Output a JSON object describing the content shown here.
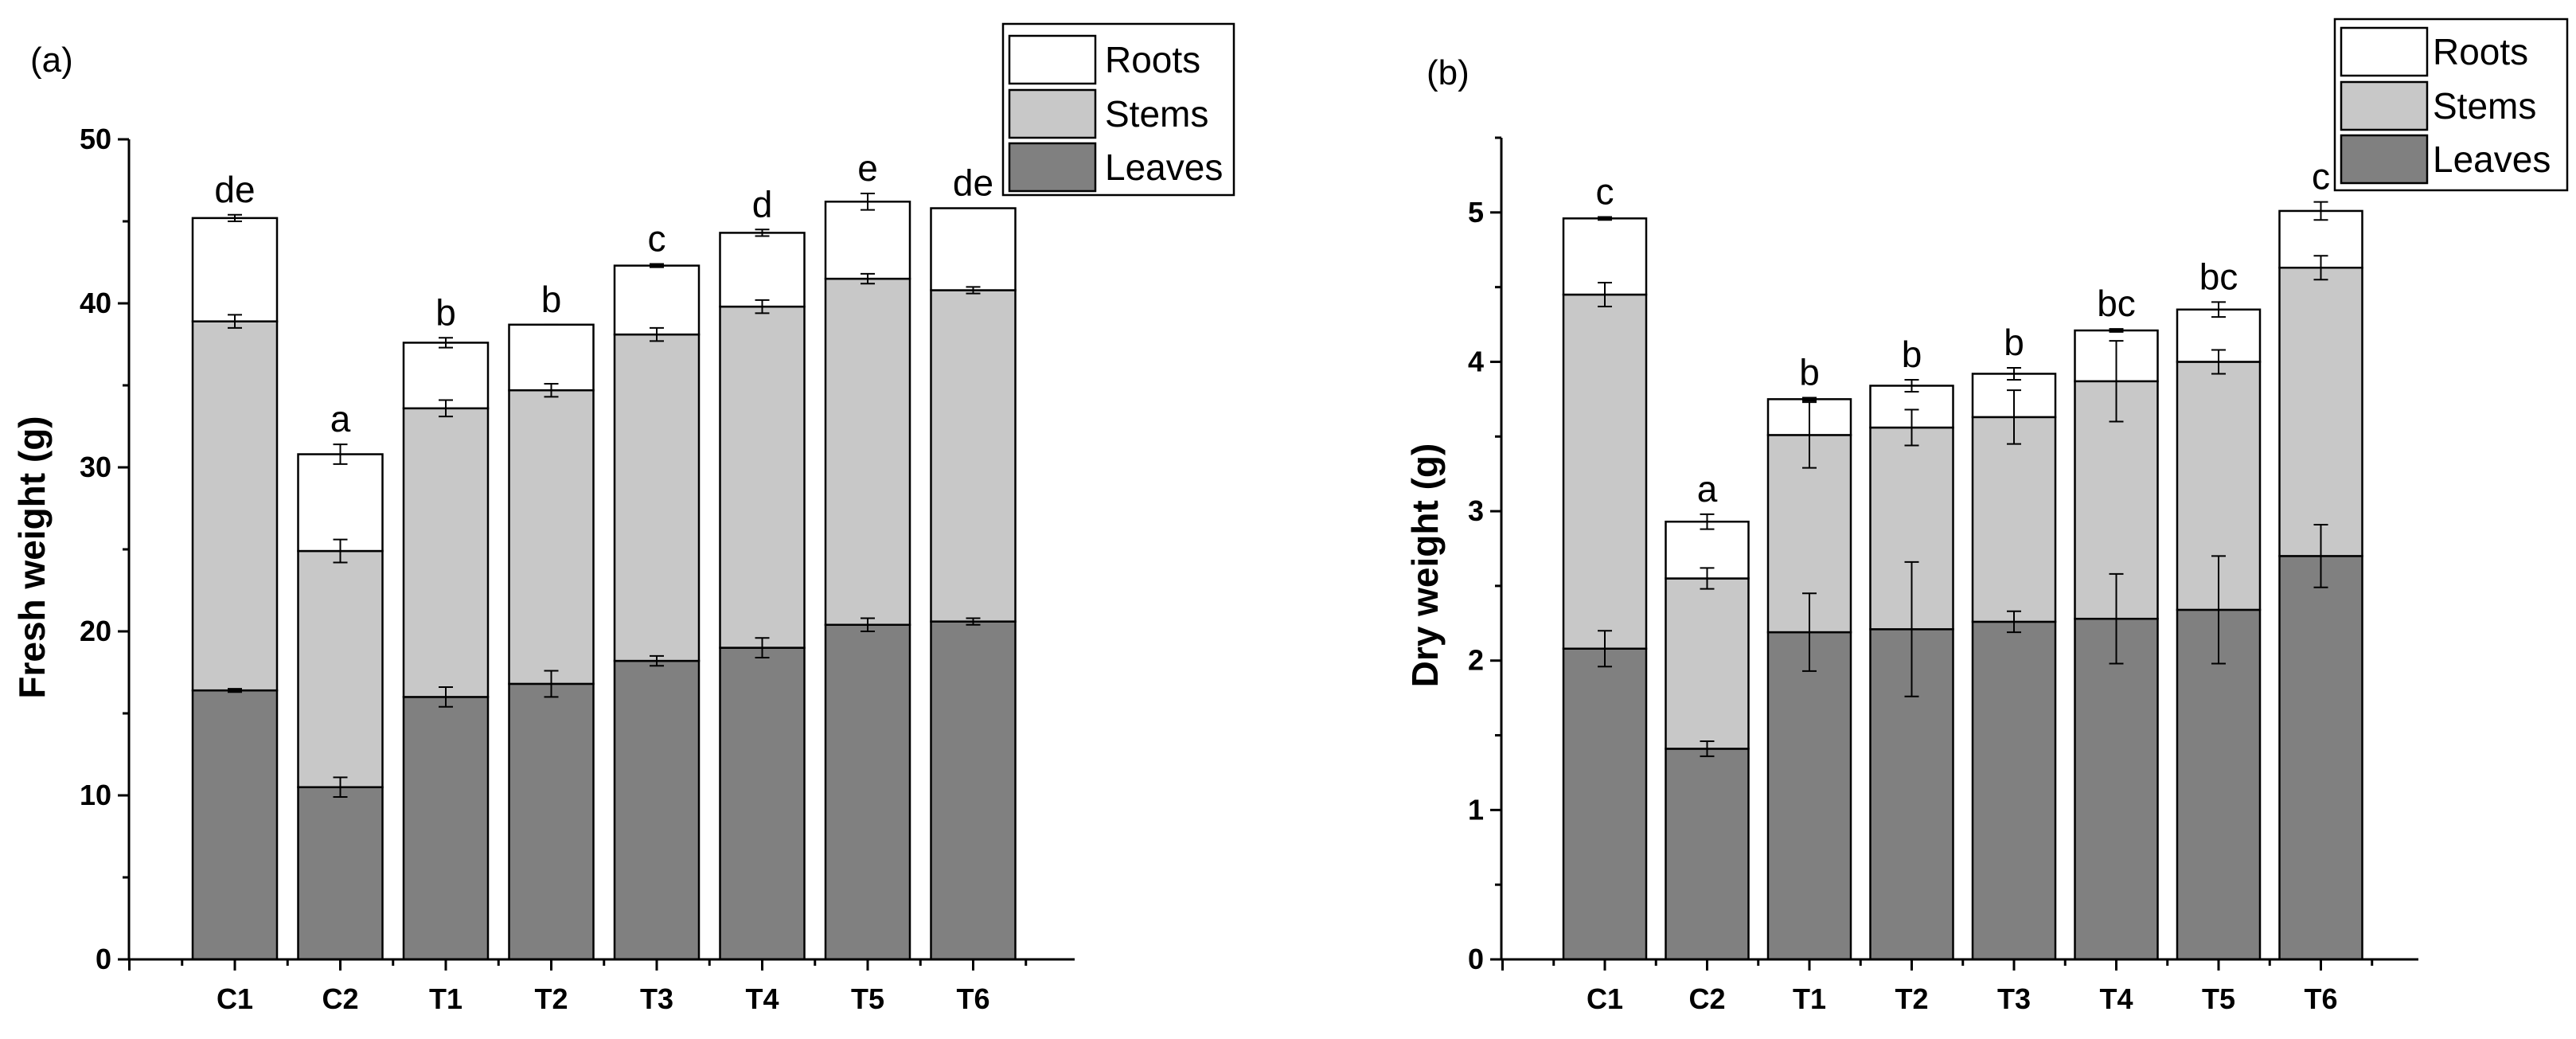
{
  "chart_data": [
    {
      "type": "bar",
      "stacked": true,
      "panel_label": "(a)",
      "title": "",
      "xlabel": "",
      "ylabel": "Fresh weight (g)",
      "ylim": [
        0,
        50
      ],
      "yticks": [
        0,
        10,
        20,
        30,
        40,
        50
      ],
      "categories": [
        "C1",
        "C2",
        "T1",
        "T2",
        "T3",
        "T4",
        "T5",
        "T6"
      ],
      "series": [
        {
          "name": "Leaves",
          "color": "#808080",
          "values": [
            16.4,
            10.5,
            16.0,
            16.8,
            18.2,
            19.0,
            20.4,
            20.6
          ],
          "errors": [
            0.1,
            0.6,
            0.6,
            0.8,
            0.3,
            0.6,
            0.4,
            0.2
          ]
        },
        {
          "name": "Stems",
          "color": "#c8c8c8",
          "values": [
            22.5,
            14.4,
            17.6,
            17.9,
            19.9,
            20.8,
            21.1,
            20.2
          ],
          "errors": [
            0.4,
            0.7,
            0.5,
            0.4,
            0.4,
            0.4,
            0.3,
            0.2
          ]
        },
        {
          "name": "Roots",
          "color": "#ffffff",
          "values": [
            6.3,
            5.9,
            4.0,
            4.0,
            4.2,
            4.5,
            4.7,
            5.0
          ],
          "errors": [
            0.2,
            0.6,
            0.3,
            0.0,
            0.1,
            0.2,
            0.5,
            0.0
          ]
        }
      ],
      "significance": [
        "de",
        "a",
        "b",
        "b",
        "c",
        "d",
        "e",
        "de"
      ],
      "legend": {
        "placement": "top-right",
        "entries": [
          "Roots",
          "Stems",
          "Leaves"
        ]
      }
    },
    {
      "type": "bar",
      "stacked": true,
      "panel_label": "(b)",
      "title": "",
      "xlabel": "",
      "ylabel": "Dry weight (g)",
      "ylim": [
        0,
        5.5
      ],
      "yticks": [
        0,
        1,
        2,
        3,
        4,
        5
      ],
      "categories": [
        "C1",
        "C2",
        "T1",
        "T2",
        "T3",
        "T4",
        "T5",
        "T6"
      ],
      "series": [
        {
          "name": "Leaves",
          "color": "#808080",
          "values": [
            2.08,
            1.41,
            2.19,
            2.21,
            2.26,
            2.28,
            2.34,
            2.7
          ],
          "errors": [
            0.12,
            0.05,
            0.26,
            0.45,
            0.07,
            0.3,
            0.36,
            0.21
          ]
        },
        {
          "name": "Stems",
          "color": "#c8c8c8",
          "values": [
            2.37,
            1.14,
            1.32,
            1.35,
            1.37,
            1.59,
            1.66,
            1.93
          ],
          "errors": [
            0.08,
            0.07,
            0.22,
            0.12,
            0.18,
            0.27,
            0.08,
            0.08
          ]
        },
        {
          "name": "Roots",
          "color": "#ffffff",
          "values": [
            0.51,
            0.38,
            0.24,
            0.28,
            0.29,
            0.34,
            0.35,
            0.38
          ],
          "errors": [
            0.01,
            0.05,
            0.01,
            0.04,
            0.04,
            0.01,
            0.05,
            0.06
          ]
        }
      ],
      "significance": [
        "c",
        "a",
        "b",
        "b",
        "b",
        "bc",
        "bc",
        "c"
      ],
      "legend": {
        "placement": "top-right",
        "entries": [
          "Roots",
          "Stems",
          "Leaves"
        ]
      }
    }
  ]
}
